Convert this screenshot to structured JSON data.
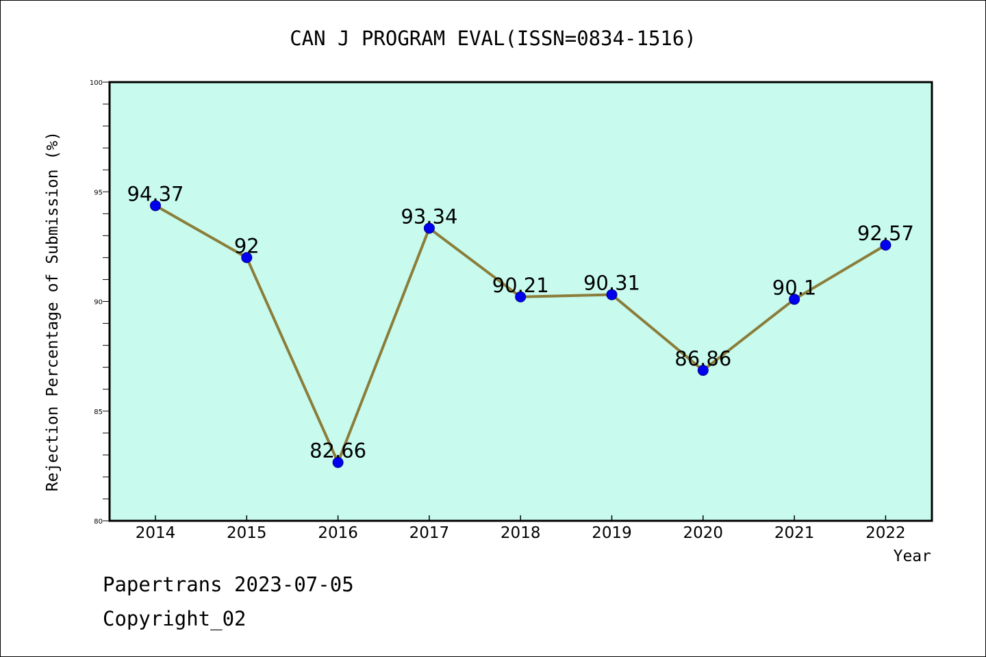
{
  "chart_data": {
    "type": "line",
    "title": "CAN J PROGRAM EVAL(ISSN=0834-1516)",
    "xlabel": "Year",
    "ylabel": "Rejection Percentage of Submission (%)",
    "categories": [
      "2014",
      "2015",
      "2016",
      "2017",
      "2018",
      "2019",
      "2020",
      "2021",
      "2022"
    ],
    "series": [
      {
        "values": [
          94.37,
          92,
          82.66,
          93.34,
          90.21,
          90.31,
          86.86,
          90.1,
          92.57
        ],
        "labels": [
          "94.37",
          "92",
          "82.66",
          "93.34",
          "90.21",
          "90.31",
          "86.86",
          "90.1",
          "92.57"
        ]
      }
    ],
    "ylim": [
      80,
      100
    ],
    "yticks": [
      "80",
      "85",
      "90",
      "95",
      "100"
    ],
    "grid": false,
    "colors": {
      "plot_background": "#c8fbee",
      "line": "#8b7d3a",
      "marker": "#0000ee"
    }
  },
  "footer": {
    "line1": "Papertrans 2023-07-05",
    "line2": "Copyright_02"
  }
}
